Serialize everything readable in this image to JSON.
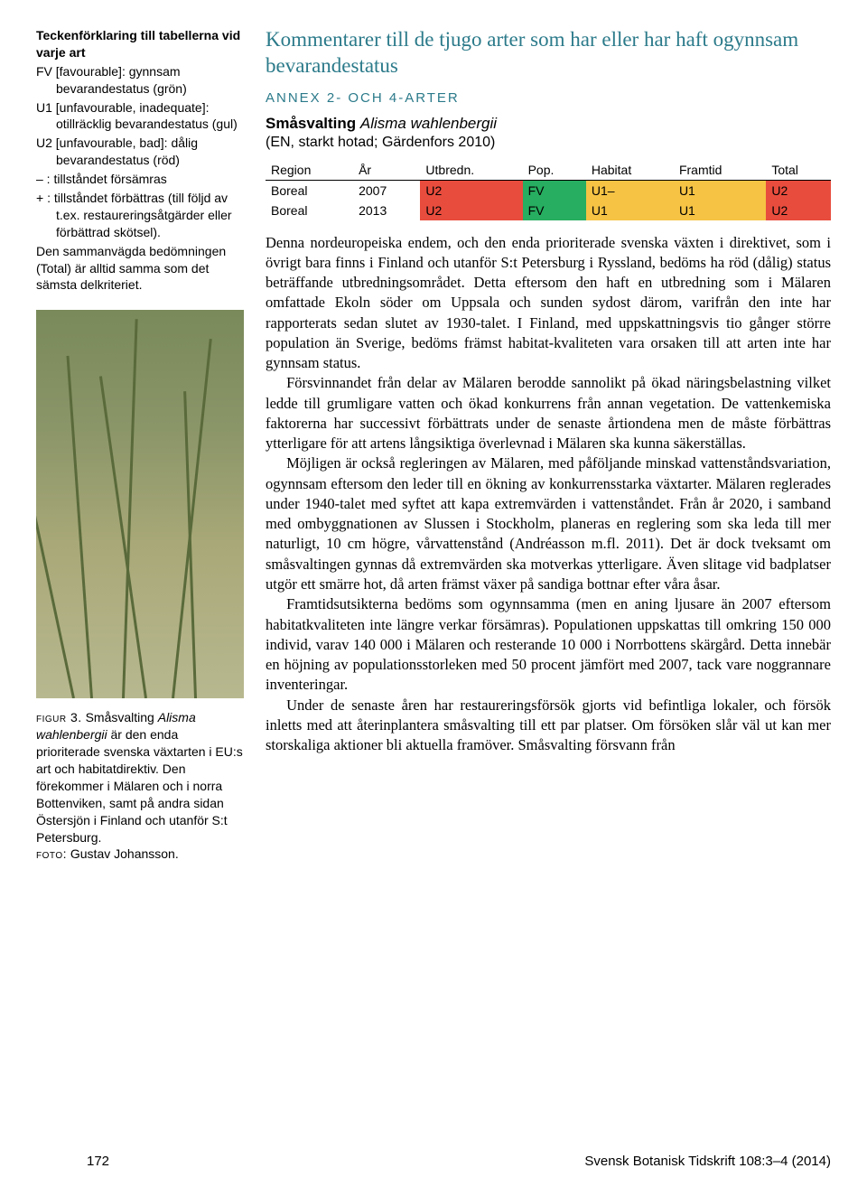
{
  "legend": {
    "title": "Teckenförklaring till tabellerna vid varje art",
    "items": [
      {
        "code": "FV",
        "label": "[favourable]: gynnsam bevarandestatus (grön)"
      },
      {
        "code": "U1",
        "label": "[unfavourable, inadequate]: otillräcklig bevarandestatus (gul)"
      },
      {
        "code": "U2",
        "label": "[unfavourable, bad]: dålig bevarandestatus (röd)"
      },
      {
        "code": "– :",
        "label": "tillståndet försämras"
      },
      {
        "code": "+ :",
        "label": "tillståndet förbättras (till följd av t.ex. restaureringsåtgärder eller förbättrad skötsel)."
      }
    ],
    "note": "Den sammanvägda bedömningen (Total) är alltid samma som det sämsta delkriteriet."
  },
  "figure": {
    "label": "figur 3.",
    "caption_pre": "Småsvalting ",
    "caption_em": "Alisma wahlenbergii",
    "caption_post": " är den enda prioriterade svenska växtarten i EU:s art och habitatdirektiv. Den förekommer i Mälaren och i norra Bottenviken, samt på andra sidan Östersjön i Finland och utanför S:t Petersburg.",
    "photo_label": "foto:",
    "photo_credit": " Gustav Johansson."
  },
  "main": {
    "heading": "Kommentarer till de tjugo arter som har eller har haft ogynnsam bevarandestatus",
    "annex": "ANNEX 2- OCH 4-ARTER",
    "species_bold": "Småsvalting ",
    "species_em": "Alisma wahlenbergii",
    "species_sub": "(EN, starkt hotad; Gärdenfors 2010)"
  },
  "table": {
    "columns": [
      "Region",
      "År",
      "Utbredn.",
      "Pop.",
      "Habitat",
      "Framtid",
      "Total"
    ],
    "rows": [
      {
        "cells": [
          "Boreal",
          "2007",
          "U2",
          "FV",
          "U1–",
          "U1",
          "U2"
        ],
        "colors": [
          "",
          "",
          "#e84c3d",
          "#27ae60",
          "#f6c344",
          "#f6c344",
          "#e84c3d"
        ]
      },
      {
        "cells": [
          "Boreal",
          "2013",
          "U2",
          "FV",
          "U1",
          "U1",
          "U2"
        ],
        "colors": [
          "",
          "",
          "#e84c3d",
          "#27ae60",
          "#f6c344",
          "#f6c344",
          "#e84c3d"
        ]
      }
    ]
  },
  "body": {
    "p1": "Denna nordeuropeiska endem, och den enda prioriterade svenska växten i direktivet, som i övrigt bara finns i Finland och utanför S:t Petersburg i Ryssland, bedöms ha röd (dålig) status beträffande utbredningsområdet. Detta eftersom den haft en utbredning som i Mälaren omfattade Ekoln söder om Uppsala och sunden sydost därom, varifrån den inte har rapporterats sedan slutet av 1930-talet. I Finland, med uppskattningsvis tio gånger större population än Sverige, bedöms främst habitat-kvaliteten vara orsaken till att arten inte har gynnsam status.",
    "p2": "Försvinnandet från delar av Mälaren berodde sannolikt på ökad näringsbelastning vilket ledde till grumligare vatten och ökad konkurrens från annan vegetation. De vattenkemiska faktorerna har successivt förbättrats under de senaste årtiondena men de måste förbättras ytterligare för att artens långsiktiga överlevnad i Mälaren ska kunna säkerställas.",
    "p3": "Möjligen är också regleringen av Mälaren, med påföljande minskad vattenståndsvariation, ogynnsam eftersom den leder till en ökning av konkurrensstarka växtarter. Mälaren reglerades under 1940-talet med syftet att kapa extremvärden i vattenståndet. Från år 2020, i samband med ombyggnationen av Slussen i Stockholm, planeras en reglering som ska leda till mer naturligt, 10 cm högre, vårvattenstånd (Andréasson m.fl. 2011). Det är dock tveksamt om småsvaltingen gynnas då extremvärden ska motverkas ytterligare. Även slitage vid badplatser utgör ett smärre hot, då arten främst växer på sandiga bottnar efter våra åsar.",
    "p4": "Framtidsutsikterna bedöms som ogynnsamma (men en aning ljusare än 2007 eftersom habitatkvaliteten inte längre verkar försämras). Populationen uppskattas till omkring 150 000 individ, varav 140 000 i Mälaren och resterande 10 000 i Norrbottens skärgård. Detta innebär en höjning av populationsstorleken med 50 procent jämfört med 2007, tack vare noggrannare inventeringar.",
    "p5": "Under de senaste åren har restaureringsförsök gjorts vid befintliga lokaler, och försök inletts med att återinplantera småsvalting till ett par platser. Om försöken slår väl ut kan mer storskaliga aktioner bli aktuella framöver. Småsvalting försvann från"
  },
  "footer": {
    "page": "172",
    "journal": "Svensk Botanisk Tidskrift 108:3–4 (2014)"
  }
}
